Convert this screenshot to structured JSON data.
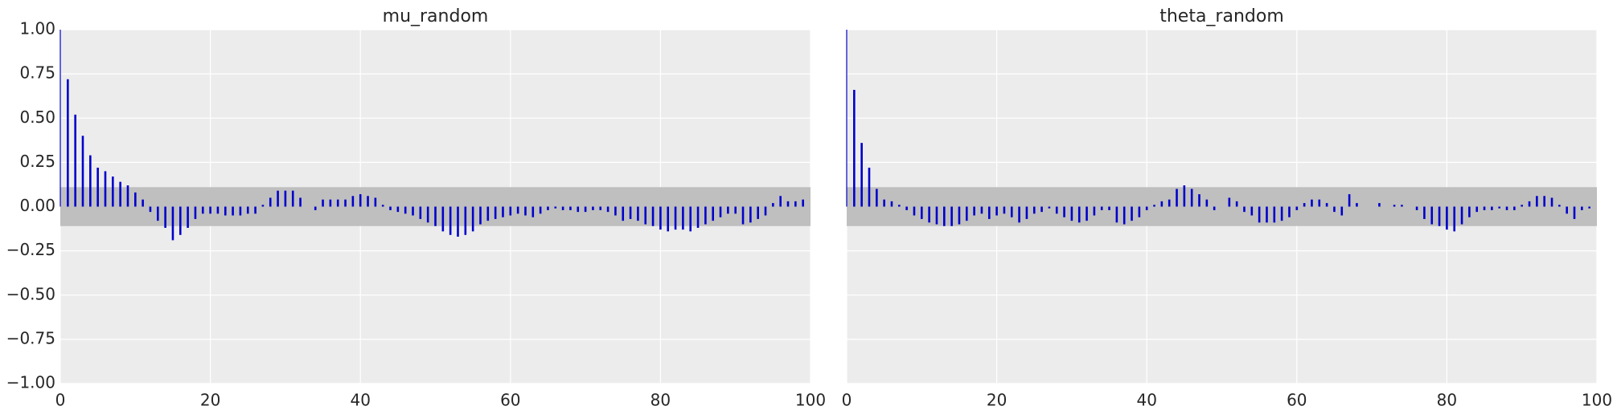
{
  "chart_data": [
    {
      "type": "bar",
      "title": "mu_random",
      "xlabel": "",
      "ylabel": "",
      "xlim": [
        0,
        100
      ],
      "ylim": [
        -1.0,
        1.0
      ],
      "grid": true,
      "confidence_band": [
        -0.11,
        0.11
      ],
      "xticks": [
        "0",
        "20",
        "40",
        "60",
        "80",
        "100"
      ],
      "yticks": [
        "1.00",
        "0.75",
        "0.50",
        "0.25",
        "0.00",
        "−0.25",
        "−0.50",
        "−0.75",
        "−1.00"
      ],
      "lags": [
        0,
        1,
        2,
        3,
        4,
        5,
        6,
        7,
        8,
        9,
        10,
        11,
        12,
        13,
        14,
        15,
        16,
        17,
        18,
        19,
        20,
        21,
        22,
        23,
        24,
        25,
        26,
        27,
        28,
        29,
        30,
        31,
        32,
        33,
        34,
        35,
        36,
        37,
        38,
        39,
        40,
        41,
        42,
        43,
        44,
        45,
        46,
        47,
        48,
        49,
        50,
        51,
        52,
        53,
        54,
        55,
        56,
        57,
        58,
        59,
        60,
        61,
        62,
        63,
        64,
        65,
        66,
        67,
        68,
        69,
        70,
        71,
        72,
        73,
        74,
        75,
        76,
        77,
        78,
        79,
        80,
        81,
        82,
        83,
        84,
        85,
        86,
        87,
        88,
        89,
        90,
        91,
        92,
        93,
        94,
        95,
        96,
        97,
        98,
        99
      ],
      "values": [
        1.0,
        0.72,
        0.52,
        0.4,
        0.29,
        0.22,
        0.2,
        0.17,
        0.14,
        0.12,
        0.08,
        0.04,
        -0.03,
        -0.08,
        -0.12,
        -0.19,
        -0.16,
        -0.12,
        -0.07,
        -0.04,
        -0.04,
        -0.04,
        -0.05,
        -0.05,
        -0.05,
        -0.04,
        -0.04,
        0.01,
        0.05,
        0.09,
        0.09,
        0.09,
        0.05,
        0.0,
        -0.02,
        0.04,
        0.04,
        0.04,
        0.04,
        0.06,
        0.07,
        0.06,
        0.05,
        0.01,
        -0.02,
        -0.03,
        -0.04,
        -0.05,
        -0.07,
        -0.09,
        -0.11,
        -0.14,
        -0.16,
        -0.17,
        -0.16,
        -0.14,
        -0.1,
        -0.08,
        -0.07,
        -0.06,
        -0.05,
        -0.04,
        -0.05,
        -0.06,
        -0.04,
        -0.02,
        -0.01,
        -0.02,
        -0.02,
        -0.03,
        -0.03,
        -0.02,
        -0.02,
        -0.03,
        -0.05,
        -0.08,
        -0.07,
        -0.08,
        -0.1,
        -0.11,
        -0.13,
        -0.14,
        -0.13,
        -0.13,
        -0.14,
        -0.12,
        -0.1,
        -0.08,
        -0.06,
        -0.04,
        -0.04,
        -0.1,
        -0.09,
        -0.07,
        -0.05,
        0.02,
        0.06,
        0.03,
        0.03,
        0.04
      ]
    },
    {
      "type": "bar",
      "title": "theta_random",
      "xlabel": "",
      "ylabel": "",
      "xlim": [
        0,
        100
      ],
      "ylim": [
        -1.0,
        1.0
      ],
      "grid": true,
      "confidence_band": [
        -0.11,
        0.11
      ],
      "xticks": [
        "0",
        "20",
        "40",
        "60",
        "80",
        "100"
      ],
      "yticks": [],
      "lags": [
        0,
        1,
        2,
        3,
        4,
        5,
        6,
        7,
        8,
        9,
        10,
        11,
        12,
        13,
        14,
        15,
        16,
        17,
        18,
        19,
        20,
        21,
        22,
        23,
        24,
        25,
        26,
        27,
        28,
        29,
        30,
        31,
        32,
        33,
        34,
        35,
        36,
        37,
        38,
        39,
        40,
        41,
        42,
        43,
        44,
        45,
        46,
        47,
        48,
        49,
        50,
        51,
        52,
        53,
        54,
        55,
        56,
        57,
        58,
        59,
        60,
        61,
        62,
        63,
        64,
        65,
        66,
        67,
        68,
        69,
        70,
        71,
        72,
        73,
        74,
        75,
        76,
        77,
        78,
        79,
        80,
        81,
        82,
        83,
        84,
        85,
        86,
        87,
        88,
        89,
        90,
        91,
        92,
        93,
        94,
        95,
        96,
        97,
        98,
        99
      ],
      "values": [
        1.0,
        0.66,
        0.36,
        0.22,
        0.1,
        0.04,
        0.03,
        0.01,
        -0.02,
        -0.05,
        -0.07,
        -0.09,
        -0.1,
        -0.11,
        -0.11,
        -0.1,
        -0.08,
        -0.05,
        -0.04,
        -0.07,
        -0.05,
        -0.04,
        -0.06,
        -0.09,
        -0.07,
        -0.04,
        -0.03,
        -0.01,
        -0.04,
        -0.06,
        -0.08,
        -0.09,
        -0.08,
        -0.05,
        -0.02,
        -0.02,
        -0.09,
        -0.1,
        -0.08,
        -0.06,
        -0.02,
        0.01,
        0.03,
        0.04,
        0.1,
        0.12,
        0.1,
        0.07,
        0.04,
        -0.02,
        0.0,
        0.05,
        0.03,
        -0.03,
        -0.05,
        -0.09,
        -0.09,
        -0.09,
        -0.08,
        -0.06,
        -0.02,
        0.02,
        0.04,
        0.04,
        0.02,
        -0.03,
        -0.05,
        0.07,
        0.02,
        0.0,
        0.0,
        0.02,
        0.0,
        0.01,
        0.01,
        0.0,
        -0.02,
        -0.07,
        -0.1,
        -0.11,
        -0.13,
        -0.14,
        -0.1,
        -0.06,
        -0.03,
        -0.02,
        -0.02,
        -0.01,
        -0.02,
        -0.02,
        0.01,
        0.03,
        0.06,
        0.06,
        0.05,
        0.01,
        -0.04,
        -0.07,
        -0.02,
        -0.01
      ]
    }
  ]
}
